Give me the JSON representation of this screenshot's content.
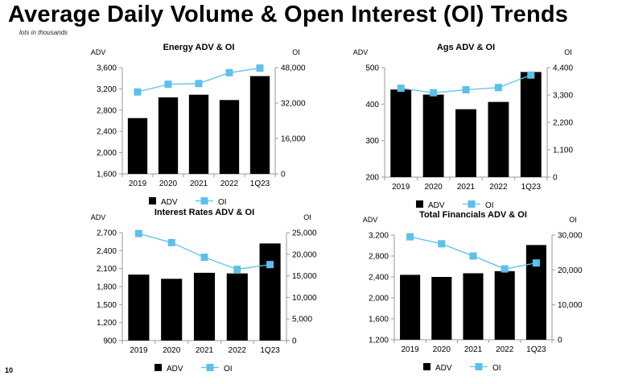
{
  "header": {
    "title": "Average Daily Volume & Open Interest (OI) Trends",
    "subtitle": "lots in thousands",
    "page_number": "10"
  },
  "colors": {
    "adv": "#000000",
    "oi": "#5bc0eb",
    "axis": "#9a9a9a"
  },
  "chart_data": [
    {
      "type": "bar",
      "title": "Energy ADV & OI",
      "categories": [
        "2019",
        "2020",
        "2021",
        "2022",
        "1Q23"
      ],
      "ylabel": "ADV",
      "y2label": "OI",
      "ylim": [
        1600,
        3600
      ],
      "yticks": [
        1600,
        2000,
        2400,
        2800,
        3200,
        3600
      ],
      "yticklabels": [
        "1,600",
        "2,000",
        "2,400",
        "2,800",
        "3,200",
        "3,600"
      ],
      "y2lim": [
        0,
        48000
      ],
      "y2ticks": [
        0,
        16000,
        32000,
        48000
      ],
      "y2ticklabels": [
        "0",
        "16,000",
        "32,000",
        "48,000"
      ],
      "series": [
        {
          "name": "ADV",
          "kind": "bar",
          "axis": "left",
          "values": [
            2650,
            3040,
            3090,
            2990,
            3440
          ]
        },
        {
          "name": "OI",
          "kind": "line",
          "axis": "right",
          "values": [
            37000,
            40500,
            40800,
            45700,
            47800
          ]
        }
      ],
      "legend": "bottom"
    },
    {
      "type": "bar",
      "title": "Ags ADV & OI",
      "categories": [
        "2019",
        "2020",
        "2021",
        "2022",
        "1Q23"
      ],
      "ylabel": "ADV",
      "y2label": "OI",
      "ylim": [
        200,
        500
      ],
      "yticks": [
        200,
        300,
        400,
        500
      ],
      "yticklabels": [
        "200",
        "300",
        "400",
        "500"
      ],
      "y2lim": [
        0,
        4400
      ],
      "y2ticks": [
        0,
        1100,
        2200,
        3300,
        4400
      ],
      "y2ticklabels": [
        "0",
        "1,100",
        "2,200",
        "3,300",
        "4,400"
      ],
      "series": [
        {
          "name": "ADV",
          "kind": "bar",
          "axis": "left",
          "values": [
            440,
            426,
            386,
            406,
            488
          ]
        },
        {
          "name": "OI",
          "kind": "line",
          "axis": "right",
          "values": [
            3570,
            3390,
            3510,
            3600,
            4100
          ]
        }
      ],
      "legend": "bottom"
    },
    {
      "type": "bar",
      "title": "Interest Rates ADV & OI",
      "categories": [
        "2019",
        "2020",
        "2021",
        "2022",
        "1Q23"
      ],
      "ylabel": "ADV",
      "y2label": "OI",
      "ylim": [
        900,
        2700
      ],
      "yticks": [
        900,
        1200,
        1500,
        1800,
        2100,
        2400,
        2700
      ],
      "yticklabels": [
        "900",
        "1,200",
        "1,500",
        "1,800",
        "2,100",
        "2,400",
        "2,700"
      ],
      "y2lim": [
        0,
        25000
      ],
      "y2ticks": [
        0,
        5000,
        10000,
        15000,
        20000,
        25000
      ],
      "y2ticklabels": [
        "0",
        "5,000",
        "10,000",
        "15,000",
        "20,000",
        "25,000"
      ],
      "series": [
        {
          "name": "ADV",
          "kind": "bar",
          "axis": "left",
          "values": [
            2000,
            1930,
            2030,
            2020,
            2520
          ]
        },
        {
          "name": "OI",
          "kind": "line",
          "axis": "right",
          "values": [
            24800,
            22700,
            19300,
            16500,
            17600
          ]
        }
      ],
      "legend": "bottom"
    },
    {
      "type": "bar",
      "title": "Total Financials ADV & OI",
      "categories": [
        "2019",
        "2020",
        "2021",
        "2022",
        "1Q23"
      ],
      "ylabel": "ADV",
      "y2label": "OI",
      "ylim": [
        1200,
        3200
      ],
      "yticks": [
        1200,
        1600,
        2000,
        2400,
        2800,
        3200
      ],
      "yticklabels": [
        "1,200",
        "1,600",
        "2,000",
        "2,400",
        "2,800",
        "3,200"
      ],
      "y2lim": [
        0,
        30000
      ],
      "y2ticks": [
        0,
        10000,
        20000,
        30000
      ],
      "y2ticklabels": [
        "0",
        "10,000",
        "20,000",
        "30,000"
      ],
      "series": [
        {
          "name": "ADV",
          "kind": "bar",
          "axis": "left",
          "values": [
            2440,
            2400,
            2470,
            2510,
            3010
          ]
        },
        {
          "name": "OI",
          "kind": "line",
          "axis": "right",
          "values": [
            29500,
            27500,
            24000,
            20300,
            22000
          ]
        }
      ],
      "legend": "bottom"
    }
  ]
}
